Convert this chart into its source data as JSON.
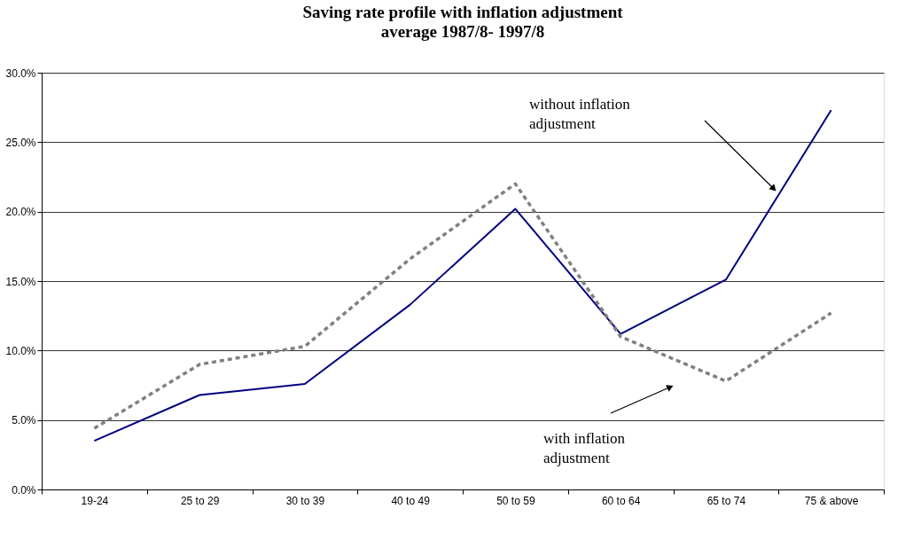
{
  "chart_data": {
    "type": "line",
    "title": "Saving rate profile with inflation adjustment",
    "subtitle": "average 1987/8- 1997/8",
    "categories": [
      "19-24",
      "25 to 29",
      "30 to 39",
      "40 to 49",
      "50 to 59",
      "60 to 64",
      "65 to 74",
      "75 & above"
    ],
    "series": [
      {
        "color": "#000080",
        "line_style": "solid",
        "values": [
          3.5,
          6.8,
          7.6,
          13.3,
          20.2,
          11.2,
          15.1,
          27.3
        ]
      },
      {
        "color": "#808080",
        "line_style": "dashed",
        "values": [
          4.4,
          9.0,
          10.3,
          16.6,
          22.0,
          11.0,
          7.8,
          12.7
        ]
      }
    ],
    "ylim": [
      0,
      30
    ],
    "yticks": [
      {
        "value": 0,
        "label": "0.0%"
      },
      {
        "value": 5,
        "label": "5.0%"
      },
      {
        "value": 10,
        "label": "10.0%"
      },
      {
        "value": 15,
        "label": "15.0%"
      },
      {
        "value": 20,
        "label": "20.0%"
      },
      {
        "value": 25,
        "label": "25.0%"
      },
      {
        "value": 30,
        "label": "30.0%"
      }
    ],
    "grid": "y",
    "marker": "none",
    "annotations": [
      "without inflation\nadjustment",
      "with inflation\nadjustment"
    ]
  }
}
